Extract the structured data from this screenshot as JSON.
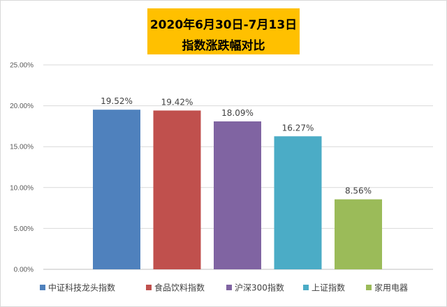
{
  "chart_data": {
    "type": "bar",
    "title_line1": "2020年6月30日-7月13日",
    "title_line2": "指数涨跌幅对比",
    "categories": [
      "中证科技龙头指数",
      "食品饮料指数",
      "沪深300指数",
      "上证指数",
      "家用电器"
    ],
    "values": [
      19.52,
      19.42,
      18.09,
      16.27,
      8.56
    ],
    "data_labels": [
      "19.52%",
      "19.42%",
      "18.09%",
      "16.27%",
      "8.56%"
    ],
    "colors": [
      "#4f81bd",
      "#c0504d",
      "#8064a2",
      "#4bacc6",
      "#9bbb59"
    ],
    "ylim": [
      0,
      25
    ],
    "y_ticks": [
      0,
      5,
      10,
      15,
      20,
      25
    ],
    "y_tick_labels": [
      "0.00%",
      "5.00%",
      "10.00%",
      "15.00%",
      "20.00%",
      "25.00%"
    ],
    "grid": true,
    "legend_position": "bottom",
    "title_background": "#ffc000"
  }
}
